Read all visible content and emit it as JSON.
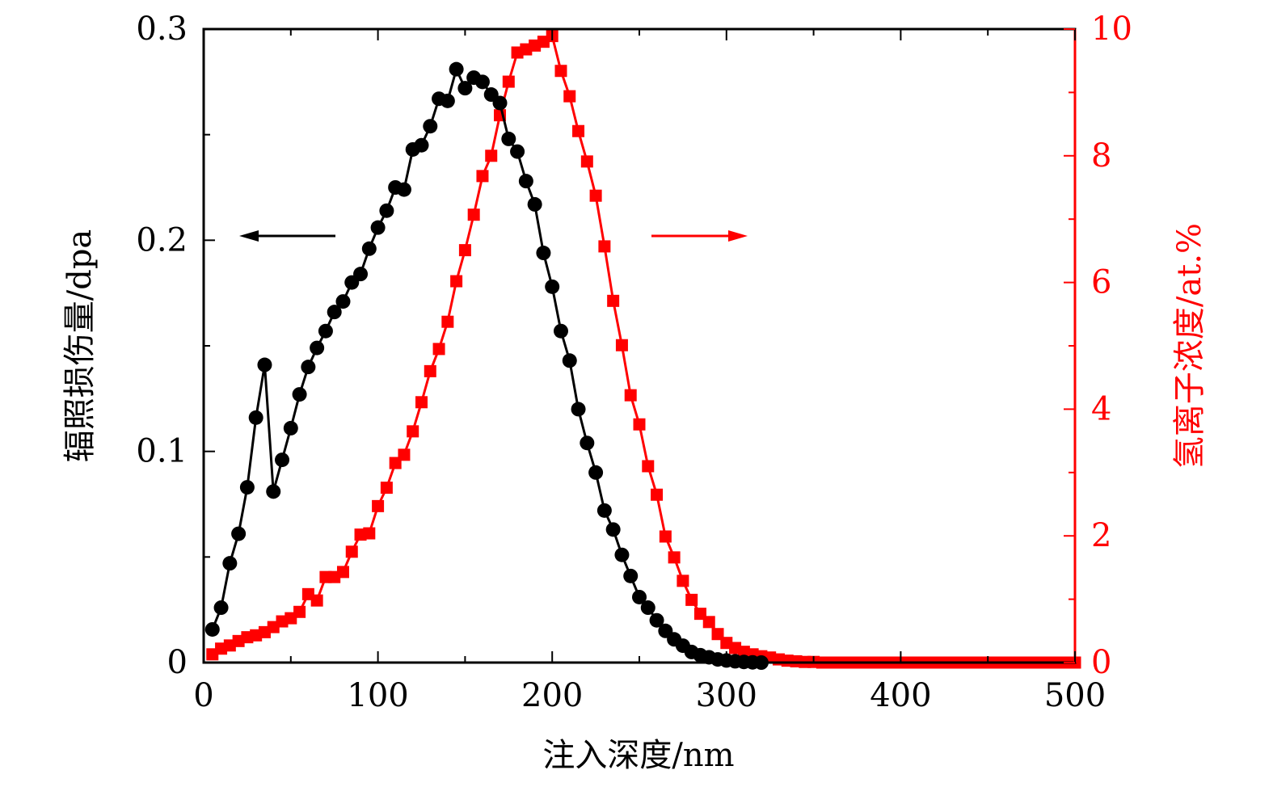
{
  "chart_data": {
    "type": "line",
    "xlabel": "注入深度/nm",
    "ylabel_left": "辐照损伤量/dpa",
    "ylabel_right": "氢离子浓度/at.%",
    "xlim": [
      0,
      500
    ],
    "ylim_left": [
      0,
      0.3
    ],
    "ylim_right": [
      0,
      10
    ],
    "x_ticks": [
      "0",
      "100",
      "200",
      "300",
      "400",
      "500"
    ],
    "y_left_ticks": [
      "0",
      "0.1",
      "0.2",
      "0.3"
    ],
    "y_right_ticks": [
      "0",
      "2",
      "4",
      "6",
      "8",
      "10"
    ],
    "grid": false,
    "colors": {
      "damage": "#000000",
      "hydrogen": "#ff0000"
    },
    "series": [
      {
        "axis": "left",
        "marker": "circle",
        "color": "#000000",
        "x": [
          5,
          10,
          15,
          20,
          25,
          30,
          35,
          40,
          45,
          50,
          55,
          60,
          65,
          70,
          75,
          80,
          85,
          90,
          95,
          100,
          105,
          110,
          115,
          120,
          125,
          130,
          135,
          140,
          145,
          150,
          155,
          160,
          165,
          170,
          175,
          180,
          185,
          190,
          195,
          200,
          205,
          210,
          215,
          220,
          225,
          230,
          235,
          240,
          245,
          250,
          255,
          260,
          265,
          270,
          275,
          280,
          285,
          290,
          295,
          300,
          305,
          310,
          315,
          320
        ],
        "y": [
          0.0157,
          0.026,
          0.047,
          0.061,
          0.083,
          0.116,
          0.141,
          0.081,
          0.096,
          0.111,
          0.127,
          0.14,
          0.149,
          0.157,
          0.166,
          0.171,
          0.18,
          0.184,
          0.196,
          0.206,
          0.214,
          0.225,
          0.224,
          0.243,
          0.245,
          0.254,
          0.267,
          0.266,
          0.281,
          0.272,
          0.277,
          0.275,
          0.269,
          0.265,
          0.248,
          0.242,
          0.228,
          0.217,
          0.194,
          0.178,
          0.157,
          0.143,
          0.12,
          0.104,
          0.09,
          0.072,
          0.063,
          0.051,
          0.041,
          0.031,
          0.026,
          0.02,
          0.015,
          0.011,
          0.008,
          0.005,
          0.0035,
          0.0025,
          0.0015,
          0.001,
          0.0006,
          0.0003,
          0.0001,
          0
        ]
      },
      {
        "axis": "right",
        "marker": "square",
        "color": "#ff0000",
        "x": [
          5,
          10,
          15,
          20,
          25,
          30,
          35,
          40,
          45,
          50,
          55,
          60,
          65,
          70,
          75,
          80,
          85,
          90,
          95,
          100,
          105,
          110,
          115,
          120,
          125,
          130,
          135,
          140,
          145,
          150,
          155,
          160,
          165,
          170,
          175,
          180,
          185,
          190,
          195,
          200,
          205,
          210,
          215,
          220,
          225,
          230,
          235,
          240,
          245,
          250,
          255,
          260,
          265,
          270,
          275,
          280,
          285,
          290,
          295,
          300,
          305,
          310,
          315,
          320,
          325,
          330,
          335,
          340,
          345,
          350,
          355,
          360,
          365,
          370,
          375,
          380,
          385,
          390,
          395,
          400,
          405,
          410,
          415,
          420,
          425,
          430,
          435,
          440,
          445,
          450,
          455,
          460,
          465,
          470,
          475,
          480,
          485,
          490,
          495,
          500
        ],
        "y": [
          0.13,
          0.22,
          0.27,
          0.34,
          0.4,
          0.43,
          0.48,
          0.56,
          0.65,
          0.7,
          0.8,
          1.08,
          0.98,
          1.35,
          1.35,
          1.43,
          1.75,
          2.02,
          2.04,
          2.47,
          2.76,
          3.15,
          3.28,
          3.65,
          4.11,
          4.6,
          4.95,
          5.38,
          6.02,
          6.51,
          7.07,
          7.68,
          8.0,
          8.64,
          9.17,
          9.63,
          9.68,
          9.74,
          9.8,
          9.89,
          9.34,
          8.94,
          8.39,
          7.91,
          7.37,
          6.57,
          5.71,
          5.01,
          4.22,
          3.76,
          3.1,
          2.65,
          1.99,
          1.66,
          1.29,
          0.99,
          0.77,
          0.64,
          0.45,
          0.31,
          0.23,
          0.17,
          0.13,
          0.1,
          0.08,
          0.05,
          0.03,
          0.02,
          0.01,
          0.01,
          0,
          0,
          0,
          0,
          0,
          0,
          0,
          0,
          0,
          0,
          0,
          0,
          0,
          0,
          0,
          0,
          0,
          0,
          0,
          0,
          0,
          0,
          0,
          0,
          0,
          0,
          0,
          0,
          0,
          0
        ]
      }
    ]
  }
}
